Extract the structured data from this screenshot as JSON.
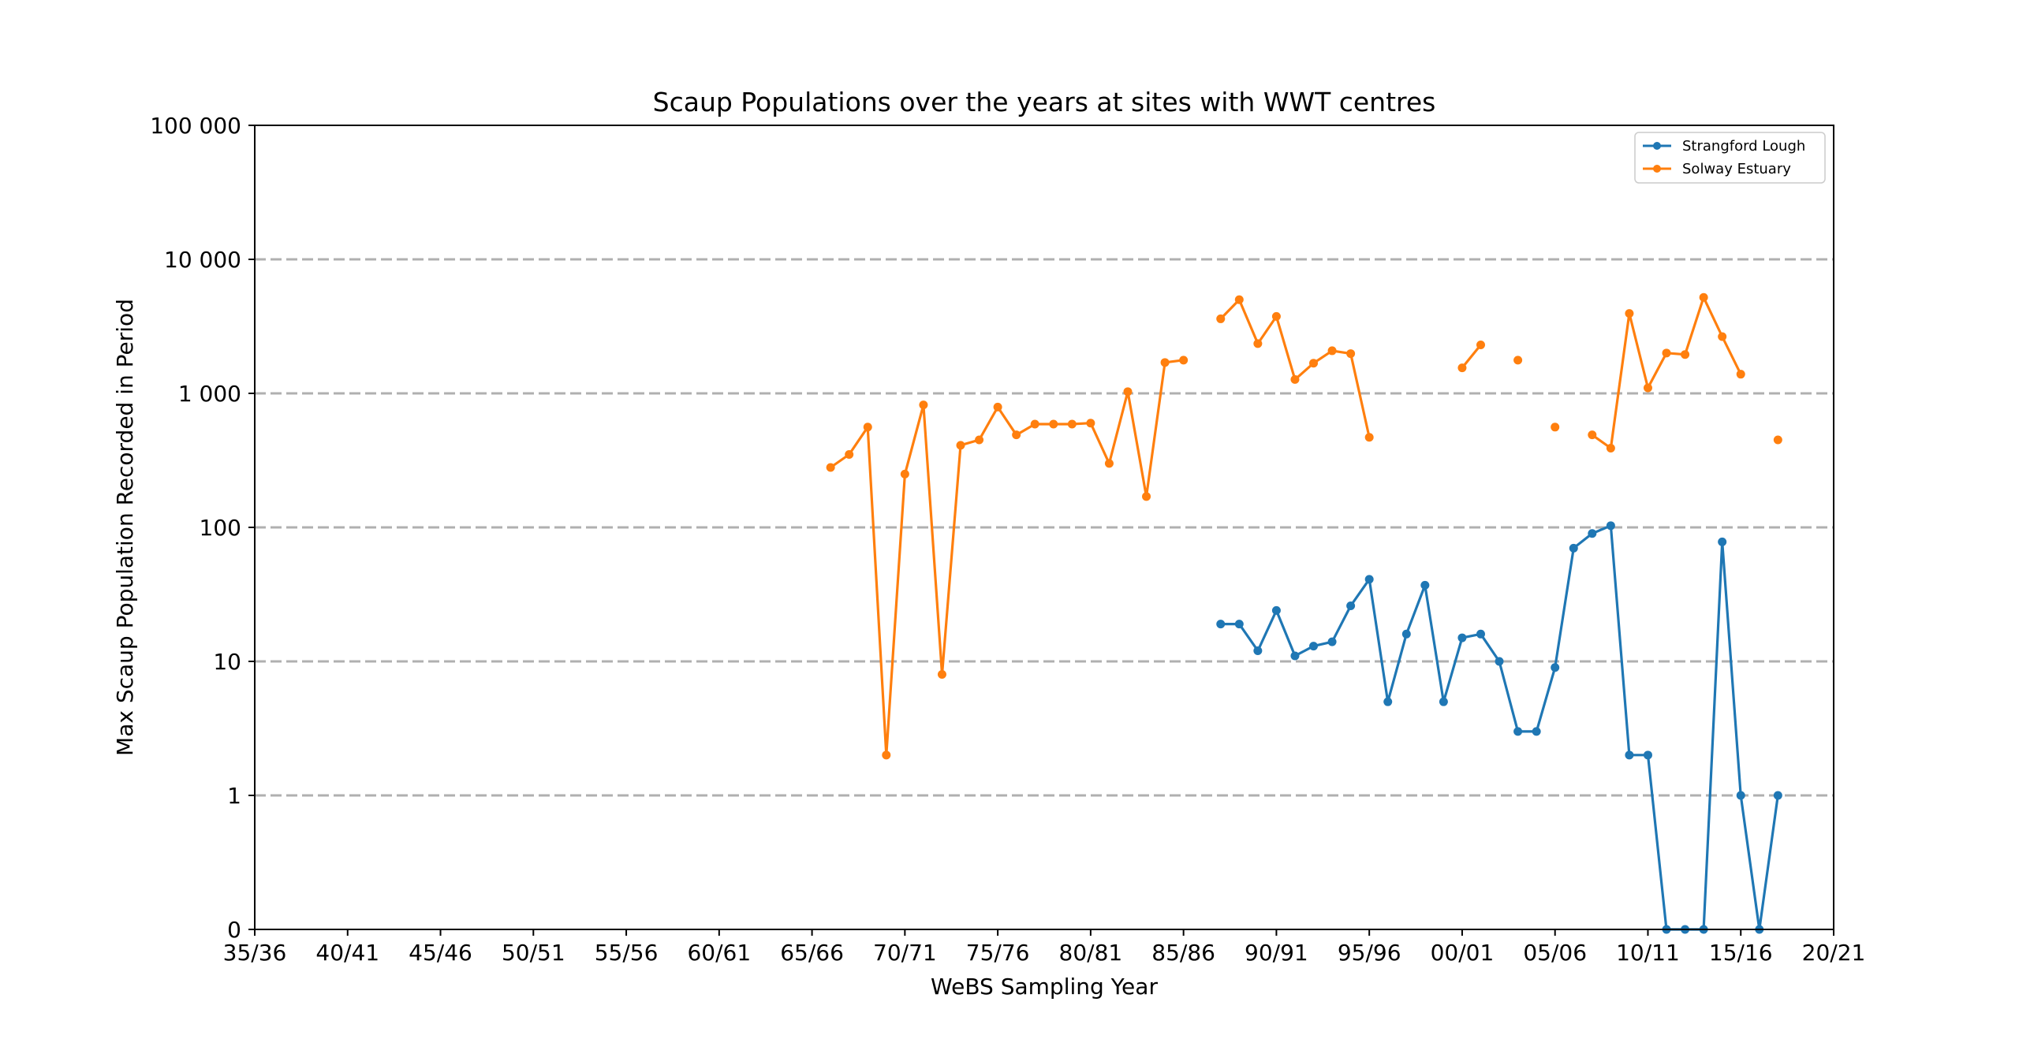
{
  "chart_data": {
    "type": "line",
    "title": "Scaup Populations over the years at sites with WWT centres",
    "xlabel": "WeBS Sampling Year",
    "ylabel": "Max Scaup Population Recorded in Period",
    "x_range": [
      "35/36",
      "20/21"
    ],
    "y_scale": "symlog",
    "y_range": [
      0,
      100000
    ],
    "grid": "horizontal dashed at y ticks",
    "legend_position": "top-right",
    "x_tick_labels": [
      "35/36",
      "40/41",
      "45/46",
      "50/51",
      "55/56",
      "60/61",
      "65/66",
      "70/71",
      "75/76",
      "80/81",
      "85/86",
      "90/91",
      "95/96",
      "00/01",
      "05/06",
      "10/11",
      "15/16",
      "20/21"
    ],
    "y_ticks": [
      {
        "value": 0,
        "label": "0"
      },
      {
        "value": 1,
        "label": "1"
      },
      {
        "value": 10,
        "label": "10"
      },
      {
        "value": 100,
        "label": "100"
      },
      {
        "value": 1000,
        "label": "1 000"
      },
      {
        "value": 10000,
        "label": "10 000"
      },
      {
        "value": 100000,
        "label": "100 000"
      }
    ],
    "series": [
      {
        "name": "Strangford Lough",
        "color": "#1f77b4",
        "x": [
          "87/88",
          "88/89",
          "89/90",
          "90/91",
          "91/92",
          "92/93",
          "93/94",
          "94/95",
          "95/96",
          "96/97",
          "97/98",
          "98/99",
          "99/00",
          "00/01",
          "01/02",
          "02/03",
          "03/04",
          "04/05",
          "05/06",
          "06/07",
          "07/08",
          "08/09",
          "09/10",
          "10/11",
          "11/12",
          "12/13",
          "13/14",
          "14/15",
          "15/16",
          "16/17",
          "17/18"
        ],
        "values": [
          19,
          19,
          12,
          24,
          11,
          13,
          14,
          26,
          41,
          5,
          16,
          37,
          5,
          15,
          16,
          10,
          3,
          3,
          9,
          70,
          90,
          103,
          2,
          2,
          0,
          0,
          0,
          78,
          1,
          0,
          1
        ]
      },
      {
        "name": "Solway Estuary",
        "color": "#ff7f0e",
        "x": [
          "66/67",
          "67/68",
          "68/69",
          "69/70",
          "70/71",
          "71/72",
          "72/73",
          "73/74",
          "74/75",
          "75/76",
          "76/77",
          "77/78",
          "78/79",
          "79/80",
          "80/81",
          "81/82",
          "82/83",
          "83/84",
          "84/85",
          "85/86",
          "86/87",
          "87/88",
          "88/89",
          "89/90",
          "90/91",
          "91/92",
          "92/93",
          "93/94",
          "94/95",
          "95/96",
          "96/97",
          "97/98",
          "98/99",
          "99/00",
          "00/01",
          "01/02",
          "02/03",
          "03/04",
          "04/05",
          "05/06",
          "06/07",
          "07/08",
          "08/09",
          "09/10",
          "10/11",
          "11/12",
          "12/13",
          "13/14",
          "14/15",
          "15/16",
          "16/17",
          "17/18"
        ],
        "values": [
          280,
          350,
          560,
          2,
          250,
          820,
          8,
          410,
          450,
          790,
          490,
          590,
          590,
          590,
          600,
          300,
          1030,
          170,
          1700,
          1770,
          null,
          3600,
          5000,
          2350,
          3750,
          1270,
          1680,
          2080,
          1980,
          470,
          null,
          null,
          null,
          null,
          1550,
          2300,
          null,
          1770,
          null,
          560,
          null,
          490,
          390,
          3950,
          1100,
          2000,
          1950,
          5200,
          2650,
          1390,
          null,
          450
        ]
      }
    ]
  }
}
